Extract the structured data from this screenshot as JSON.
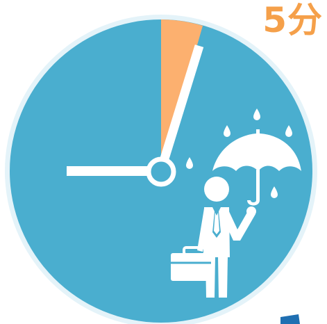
{
  "time_label": "5分",
  "colors": {
    "clock_face": "#4aaecf",
    "clock_rim": "#e4f3f9",
    "highlight_wedge": "#fcb06f",
    "hands": "#ffffff",
    "label": "#f5a04a",
    "corner_accent": "#1f6fb2"
  },
  "icons": [
    "clock-icon",
    "businessman-icon",
    "umbrella-icon",
    "briefcase-icon",
    "raindrop-icon"
  ]
}
